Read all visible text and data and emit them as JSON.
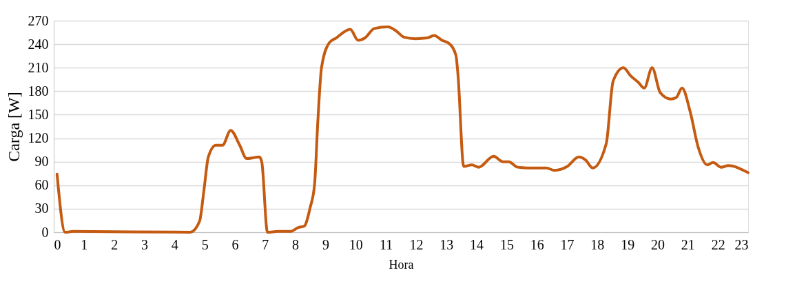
{
  "chart_data": {
    "type": "line",
    "xlabel": "Hora",
    "ylabel": "Carga [W]",
    "x": [
      0.11,
      0.38,
      0.64,
      4.52,
      4.83,
      4.98,
      5.12,
      5.37,
      5.59,
      5.86,
      6.16,
      6.39,
      6.81,
      6.89,
      7.08,
      7.42,
      7.83,
      8.1,
      8.3,
      8.49,
      8.64,
      8.75,
      8.87,
      9.13,
      9.36,
      9.63,
      9.82,
      10.08,
      10.31,
      10.62,
      11.07,
      11.34,
      11.6,
      11.99,
      12.37,
      12.6,
      12.86,
      13.09,
      13.32,
      13.39,
      13.58,
      13.85,
      14.08,
      14.57,
      14.88,
      15.07,
      15.37,
      15.79,
      16.32,
      16.59,
      17.01,
      17.39,
      17.62,
      17.85,
      18.3,
      18.53,
      18.87,
      19.1,
      19.37,
      19.56,
      19.82,
      20.09,
      20.43,
      20.62,
      20.81,
      21.08,
      21.35,
      21.65,
      21.84,
      22.11,
      22.34,
      23
    ],
    "series": [
      {
        "color": "#c55a11",
        "values": [
          74,
          0,
          1,
          0,
          14,
          55,
          96,
          111,
          111,
          130,
          111,
          94,
          96,
          90,
          0,
          1,
          1,
          6,
          8,
          31,
          61,
          143,
          210,
          242,
          248,
          256,
          259,
          245,
          248,
          260,
          262,
          257,
          249,
          247,
          248,
          251,
          245,
          241,
          226,
          201,
          84,
          86,
          83,
          97,
          90,
          90,
          83,
          82,
          82,
          79,
          84,
          96,
          92,
          82,
          113,
          193,
          210,
          200,
          191,
          184,
          210,
          178,
          170,
          172,
          184,
          154,
          108,
          86,
          89,
          83,
          85,
          76
        ]
      }
    ],
    "xlim": [
      0,
      23
    ],
    "xticks": [
      0,
      1,
      2,
      3,
      4,
      5,
      6,
      7,
      8,
      9,
      10,
      11,
      12,
      13,
      14,
      15,
      16,
      17,
      18,
      19,
      20,
      21,
      22,
      23
    ],
    "ylim": [
      0,
      270
    ],
    "yticks": [
      0,
      30,
      60,
      90,
      120,
      150,
      180,
      210,
      240,
      270
    ],
    "grid": "y",
    "legend": false,
    "marker": "none",
    "line_style": "solid"
  }
}
